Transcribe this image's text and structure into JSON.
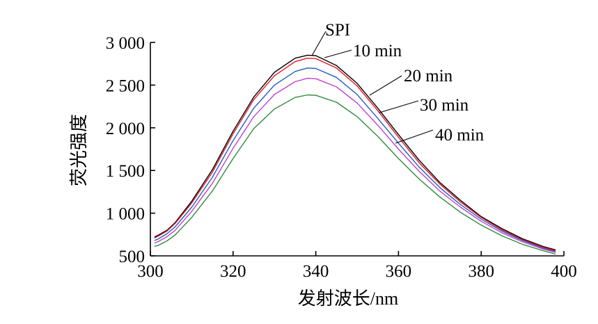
{
  "chart_data": {
    "type": "line",
    "xlabel": "发射波长/nm",
    "ylabel": "荧光强度",
    "xlim": [
      300,
      400
    ],
    "ylim": [
      500,
      3000
    ],
    "x_ticks": [
      "300",
      "320",
      "340",
      "360",
      "380",
      "400"
    ],
    "y_ticks": [
      "500",
      "1 000",
      "1 500",
      "2 000",
      "2 500",
      "3 000"
    ],
    "x_tick_values": [
      300,
      320,
      340,
      360,
      380,
      400
    ],
    "y_tick_values": [
      500,
      1000,
      1500,
      2000,
      2500,
      3000
    ],
    "grid": false,
    "legend": "callout labels on curves",
    "x": [
      301,
      302,
      304,
      306,
      310,
      315,
      320,
      325,
      330,
      335,
      338,
      340,
      345,
      350,
      355,
      360,
      365,
      370,
      375,
      380,
      385,
      390,
      395,
      398
    ],
    "series": [
      {
        "name": "SPI",
        "color": "#000000",
        "values": [
          720,
          745,
          800,
          890,
          1140,
          1510,
          1960,
          2360,
          2650,
          2815,
          2850,
          2845,
          2730,
          2520,
          2230,
          1920,
          1620,
          1360,
          1150,
          960,
          820,
          700,
          610,
          570
        ]
      },
      {
        "name": "10 min",
        "color": "#e8141e",
        "values": [
          710,
          735,
          790,
          880,
          1120,
          1480,
          1930,
          2330,
          2610,
          2775,
          2815,
          2810,
          2700,
          2490,
          2200,
          1890,
          1590,
          1340,
          1130,
          950,
          805,
          690,
          600,
          560
        ]
      },
      {
        "name": "20 min",
        "color": "#1f5fbf",
        "values": [
          680,
          700,
          760,
          840,
          1070,
          1420,
          1850,
          2230,
          2500,
          2660,
          2700,
          2695,
          2590,
          2390,
          2110,
          1820,
          1540,
          1300,
          1100,
          930,
          790,
          680,
          590,
          550
        ]
      },
      {
        "name": "30 min",
        "color": "#c040c8",
        "values": [
          650,
          670,
          725,
          800,
          1020,
          1350,
          1760,
          2130,
          2390,
          2540,
          2580,
          2575,
          2480,
          2290,
          2030,
          1750,
          1490,
          1260,
          1070,
          905,
          770,
          665,
          580,
          540
        ]
      },
      {
        "name": "40 min",
        "color": "#2f8a3a",
        "values": [
          610,
          625,
          675,
          745,
          950,
          1260,
          1640,
          1990,
          2220,
          2355,
          2385,
          2380,
          2300,
          2130,
          1900,
          1640,
          1400,
          1190,
          1010,
          860,
          735,
          635,
          560,
          520
        ]
      }
    ],
    "annotations": [
      "SPI",
      "10 min",
      "20 min",
      "30 min",
      "40 min"
    ]
  }
}
